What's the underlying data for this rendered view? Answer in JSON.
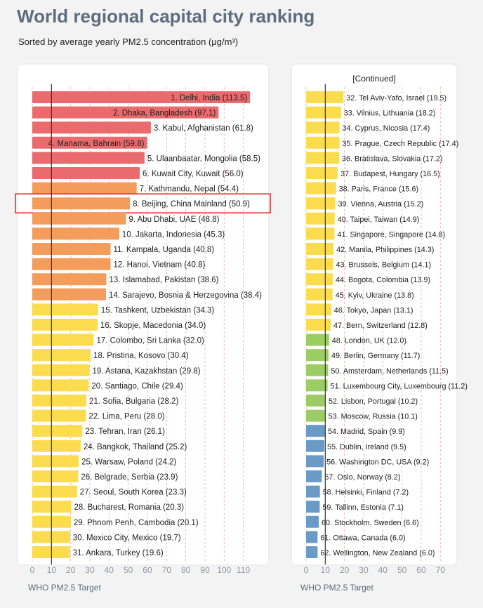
{
  "title": "World regional capital city ranking",
  "subtitle": "Sorted by average yearly PM2.5 concentration (μg/m³)",
  "continued_label": "[Continued]",
  "who_label": "WHO PM2.5 Target",
  "colors": {
    "red": "#ea6a6d",
    "orange": "#f39c5b",
    "yellow": "#fbdc4e",
    "green": "#9ccd65",
    "blue": "#6a9ac6",
    "highlight": "#e03333"
  },
  "chart_data": [
    {
      "type": "bar",
      "orientation": "horizontal",
      "xlim": [
        0,
        115
      ],
      "xticks": [
        0,
        10,
        20,
        30,
        40,
        50,
        60,
        70,
        80,
        90,
        100,
        110
      ],
      "who_target": 10,
      "highlighted": "8. Beijing, China Mainland (50.9)",
      "labels": [
        "1. Delhi, India (113.5)",
        "2. Dhaka, Bangladesh (97.1)",
        "3. Kabul, Afghanistan (61.8)",
        "4. Manama, Bahrain (59.8)",
        "5. Ulaanbaatar, Mongolia (58.5)",
        "6. Kuwait City, Kuwait (56.0)",
        "7. Kathmandu, Nepal (54.4)",
        "8. Beijing, China Mainland (50.9)",
        "9. Abu Dhabi, UAE (48.8)",
        "10. Jakarta, Indonesia (45.3)",
        "11. Kampala, Uganda (40.8)",
        "12. Hanoi, Vietnam (40.8)",
        "13. Islamabad, Pakistan (38.6)",
        "14. Sarajevo, Bosnia & Herzegovina (38.4)",
        "15. Tashkent, Uzbekistan (34.3)",
        "16. Skopje, Macedonia (34.0)",
        "17. Colombo, Sri Lanka (32.0)",
        "18. Pristina, Kosovo (30.4)",
        "19. Astana, Kazakhstan (29.8)",
        "20. Santiago, Chile (29.4)",
        "21. Sofia, Bulgaria (28.2)",
        "22. Lima, Peru (28.0)",
        "23. Tehran, Iran (26.1)",
        "24. Bangkok, Thailand (25.2)",
        "25. Warsaw, Poland (24.2)",
        "26. Belgrade, Serbia (23.9)",
        "27. Seoul, South Korea (23.3)",
        "28. Bucharest, Romania (20.3)",
        "29. Phnom Penh, Cambodia (20.1)",
        "30. Mexico City, Mexico (19.7)",
        "31. Ankara, Turkey (19.6)"
      ],
      "values": [
        113.5,
        97.1,
        61.8,
        59.8,
        58.5,
        56.0,
        54.4,
        50.9,
        48.8,
        45.3,
        40.8,
        40.8,
        38.6,
        38.4,
        34.3,
        34.0,
        32.0,
        30.4,
        29.8,
        29.4,
        28.2,
        28.0,
        26.1,
        25.2,
        24.2,
        23.9,
        23.3,
        20.3,
        20.1,
        19.7,
        19.6
      ],
      "colors": [
        "red",
        "red",
        "red",
        "red",
        "red",
        "red",
        "orange",
        "orange",
        "orange",
        "orange",
        "orange",
        "orange",
        "orange",
        "orange",
        "yellow",
        "yellow",
        "yellow",
        "yellow",
        "yellow",
        "yellow",
        "yellow",
        "yellow",
        "yellow",
        "yellow",
        "yellow",
        "yellow",
        "yellow",
        "yellow",
        "yellow",
        "yellow",
        "yellow"
      ]
    },
    {
      "type": "bar",
      "orientation": "horizontal",
      "xlim": [
        0,
        70
      ],
      "xticks": [
        0,
        10,
        20,
        30,
        40,
        50,
        60,
        70
      ],
      "who_target": 10,
      "labels": [
        "32. Tel Aviv-Yafo, Israel (19.5)",
        "33. Vilnius, Lithuania (18.2)",
        "34. Cyprus, Nicosia (17.4)",
        "35. Prague, Czech Republic (17.4)",
        "36. Bratislava, Slovakia (17.2)",
        "37. Budapest, Hungary (16.5)",
        "38. Paris, France (15.6)",
        "39. Vienna, Austria (15.2)",
        "40. Taipei, Taiwan (14.9)",
        "41. Singapore, Singapore (14.8)",
        "42. Manila, Philippines (14.3)",
        "43. Brussels, Belgium (14.1)",
        "44. Bogota, Colombia (13.9)",
        "45. Kyiv, Ukraine (13.8)",
        "46. Tokyo, Japan (13.1)",
        "47. Bern, Switzerland (12.8)",
        "48. London, UK (12.0)",
        "49. Berlin, Germany (11.7)",
        "50. Amsterdam, Netherlands (11.5)",
        "51. Luxembourg City, Luxembourg (11.2)",
        "52. Lisbon, Portugal (10.2)",
        "53. Moscow, Russia (10.1)",
        "54. Madrid, Spain (9.9)",
        "55. Dublin, Ireland (9.5)",
        "56. Washington DC, USA (9.2)",
        "57. Oslo, Norway (8.2)",
        "58. Helsinki, Finland (7.2)",
        "59. Tallinn, Estonia (7.1)",
        "60. Stockholm, Sweden (6.6)",
        "61. Ottawa, Canada (6.0)",
        "62. Wellington, New Zealand (6.0)"
      ],
      "values": [
        19.5,
        18.2,
        17.4,
        17.4,
        17.2,
        16.5,
        15.6,
        15.2,
        14.9,
        14.8,
        14.3,
        14.1,
        13.9,
        13.8,
        13.1,
        12.8,
        12.0,
        11.7,
        11.5,
        11.2,
        10.2,
        10.1,
        9.9,
        9.5,
        9.2,
        8.2,
        7.2,
        7.1,
        6.6,
        6.0,
        6.0
      ],
      "colors": [
        "yellow",
        "yellow",
        "yellow",
        "yellow",
        "yellow",
        "yellow",
        "yellow",
        "yellow",
        "yellow",
        "yellow",
        "yellow",
        "yellow",
        "yellow",
        "yellow",
        "yellow",
        "yellow",
        "green",
        "green",
        "green",
        "green",
        "green",
        "green",
        "blue",
        "blue",
        "blue",
        "blue",
        "blue",
        "blue",
        "blue",
        "blue",
        "blue"
      ]
    }
  ]
}
